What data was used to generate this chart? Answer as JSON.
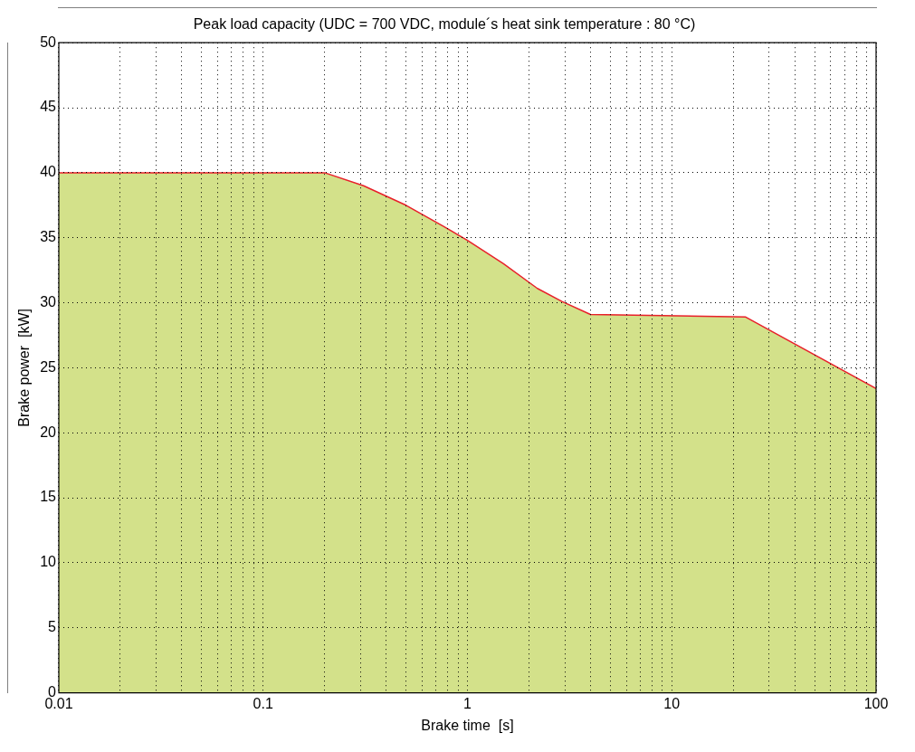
{
  "chart_data": {
    "type": "area",
    "title": "Peak load capacity (UDC = 700 VDC, module´s heat sink temperature : 80 °C)",
    "xlabel": "Brake time  [s]",
    "ylabel": "Brake power  [kW]",
    "log": "x",
    "xlim": [
      0.01,
      100
    ],
    "ylim": [
      0,
      50
    ],
    "xticks": [
      0.01,
      {
        "value": 0.02,
        "label": null
      },
      {
        "value": 0.03,
        "label": null
      },
      {
        "value": 0.04,
        "label": null
      },
      {
        "value": 0.05,
        "label": null
      },
      {
        "value": 0.06,
        "label": null
      },
      {
        "value": 0.07,
        "label": null
      },
      {
        "value": 0.08,
        "label": null
      },
      {
        "value": 0.09,
        "label": null
      },
      0.1,
      {
        "value": 0.2,
        "label": null
      },
      {
        "value": 0.3,
        "label": null
      },
      {
        "value": 0.4,
        "label": null
      },
      {
        "value": 0.5,
        "label": null
      },
      {
        "value": 0.6,
        "label": null
      },
      {
        "value": 0.7,
        "label": null
      },
      {
        "value": 0.8,
        "label": null
      },
      {
        "value": 0.9,
        "label": null
      },
      1,
      {
        "value": 2,
        "label": null
      },
      {
        "value": 3,
        "label": null
      },
      {
        "value": 4,
        "label": null
      },
      {
        "value": 5,
        "label": null
      },
      {
        "value": 6,
        "label": null
      },
      {
        "value": 7,
        "label": null
      },
      {
        "value": 8,
        "label": null
      },
      {
        "value": 9,
        "label": null
      },
      10,
      {
        "value": 20,
        "label": null
      },
      {
        "value": 30,
        "label": null
      },
      {
        "value": 40,
        "label": null
      },
      {
        "value": 50,
        "label": null
      },
      {
        "value": 60,
        "label": null
      },
      {
        "value": 70,
        "label": null
      },
      {
        "value": 80,
        "label": null
      },
      {
        "value": 90,
        "label": null
      },
      100
    ],
    "yticks": [
      0,
      5,
      10,
      15,
      20,
      25,
      30,
      35,
      40,
      45,
      50
    ],
    "grid": true,
    "series": [
      {
        "color": "#d3e18a",
        "x": [
          0.01,
          0.2,
          0.31,
          0.5,
          0.76,
          1,
          1.5,
          2.2,
          2.9,
          4,
          23,
          100
        ],
        "values": [
          40,
          40,
          39,
          37.5,
          35.9,
          34.8,
          33,
          31.1,
          30.1,
          29.1,
          28.9,
          23.4
        ]
      },
      {
        "type": "line",
        "color": "#e8202a",
        "x": [
          0.01,
          0.2,
          0.31,
          0.5,
          0.76,
          1,
          1.5,
          2.2,
          2.9,
          4,
          23,
          100
        ],
        "values": [
          40,
          40,
          39,
          37.5,
          35.9,
          34.8,
          33,
          31.1,
          30.1,
          29.1,
          28.9,
          23.4
        ]
      }
    ]
  }
}
